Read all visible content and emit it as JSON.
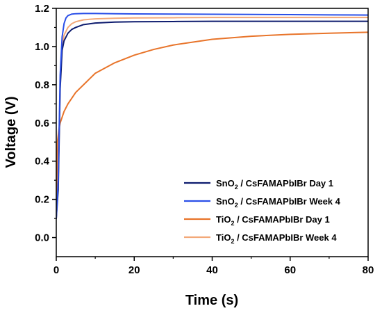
{
  "chart_data": {
    "type": "line",
    "title": "",
    "xlabel": "Time (s)",
    "ylabel": "Voltage (V)",
    "xlim": [
      0,
      80
    ],
    "ylim": [
      -0.1,
      1.2
    ],
    "xticks": [
      0,
      20,
      40,
      60,
      80
    ],
    "xtick_labels": [
      "0",
      "20",
      "40",
      "60",
      "80"
    ],
    "yticks": [
      0.0,
      0.2,
      0.4,
      0.6,
      0.8,
      1.0,
      1.2
    ],
    "ytick_labels": [
      "0.0",
      "0.2",
      "0.4",
      "0.6",
      "0.8",
      "1.0",
      "1.2"
    ],
    "grid": false,
    "legend_position": "bottom-right",
    "series": [
      {
        "name_prefix": "SnO",
        "name_sub": "2",
        "name_suffix": " / CsFAMAPbIBr Day 1",
        "color": "#0d1b6e",
        "x": [
          0,
          0.5,
          1.0,
          1.5,
          2,
          3,
          4,
          5,
          7,
          10,
          15,
          20,
          30,
          40,
          50,
          60,
          70,
          80
        ],
        "y": [
          0.1,
          0.25,
          0.78,
          0.98,
          1.03,
          1.07,
          1.09,
          1.1,
          1.115,
          1.123,
          1.128,
          1.13,
          1.131,
          1.132,
          1.132,
          1.132,
          1.132,
          1.132
        ]
      },
      {
        "name_prefix": "SnO",
        "name_sub": "2",
        "name_suffix": " / CsFAMAPbIBr Week 4",
        "color": "#2a4fe8",
        "x": [
          0,
          0.5,
          1.0,
          1.5,
          2,
          2.5,
          3,
          4,
          5,
          7,
          10,
          15,
          20,
          30,
          40,
          50,
          60,
          70,
          80
        ],
        "y": [
          0.1,
          0.3,
          0.85,
          1.05,
          1.12,
          1.15,
          1.162,
          1.17,
          1.172,
          1.173,
          1.173,
          1.172,
          1.171,
          1.17,
          1.169,
          1.168,
          1.167,
          1.166,
          1.165
        ]
      },
      {
        "name_prefix": "TiO",
        "name_sub": "2",
        "name_suffix": " / CsFAMAPbIBr Day 1",
        "color": "#e8742a",
        "x": [
          0,
          0.3,
          0.7,
          1.0,
          2,
          3,
          5,
          8,
          10,
          15,
          20,
          25,
          30,
          40,
          50,
          60,
          70,
          80
        ],
        "y": [
          0.1,
          0.5,
          0.57,
          0.6,
          0.66,
          0.7,
          0.76,
          0.82,
          0.86,
          0.915,
          0.955,
          0.985,
          1.008,
          1.038,
          1.054,
          1.064,
          1.07,
          1.075
        ]
      },
      {
        "name_prefix": "TiO",
        "name_sub": "2",
        "name_suffix": " / CsFAMAPbIBr Week 4",
        "color": "#f3a878",
        "x": [
          0,
          0.5,
          1.0,
          1.5,
          2,
          3,
          4,
          5,
          7,
          10,
          15,
          20,
          30,
          40,
          50,
          60,
          70,
          80
        ],
        "y": [
          0.1,
          0.3,
          0.8,
          1.0,
          1.06,
          1.1,
          1.12,
          1.13,
          1.14,
          1.145,
          1.148,
          1.15,
          1.151,
          1.152,
          1.152,
          1.152,
          1.152,
          1.152
        ]
      }
    ]
  }
}
